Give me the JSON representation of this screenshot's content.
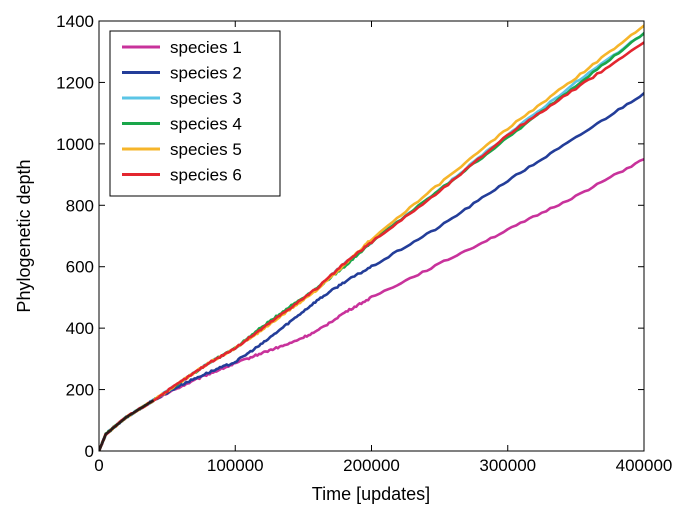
{
  "chart_data": {
    "type": "line",
    "title": "",
    "xlabel": "Time [updates]",
    "ylabel": "Phylogenetic depth",
    "xlim": [
      0,
      400000
    ],
    "ylim": [
      0,
      1400
    ],
    "xticks": [
      0,
      100000,
      200000,
      300000,
      400000
    ],
    "xtick_labels": [
      "0",
      "100000",
      "200000",
      "300000",
      "400000"
    ],
    "yticks": [
      0,
      200,
      400,
      600,
      800,
      1000,
      1200,
      1400
    ],
    "ytick_labels": [
      "0",
      "200",
      "400",
      "600",
      "800",
      "1000",
      "1200",
      "1400"
    ],
    "grid": false,
    "legend_position": "top-left",
    "series": [
      {
        "name": "species 1",
        "color": "#c8329b",
        "x": [
          0,
          5000,
          20000,
          40000,
          60000,
          80000,
          100000,
          120000,
          140000,
          160000,
          180000,
          200000,
          250000,
          300000,
          350000,
          400000
        ],
        "y": [
          0,
          55,
          110,
          165,
          210,
          250,
          285,
          320,
          350,
          390,
          450,
          500,
          610,
          720,
          830,
          950
        ]
      },
      {
        "name": "species 2",
        "color": "#233d99",
        "x": [
          0,
          5000,
          20000,
          40000,
          60000,
          80000,
          100000,
          120000,
          140000,
          160000,
          180000,
          200000,
          250000,
          300000,
          350000,
          400000
        ],
        "y": [
          0,
          55,
          110,
          165,
          215,
          255,
          290,
          350,
          420,
          490,
          550,
          600,
          730,
          880,
          1020,
          1165
        ]
      },
      {
        "name": "species 3",
        "color": "#5bc5e6",
        "x": [
          0,
          5000,
          20000,
          40000,
          60000,
          80000,
          100000,
          120000,
          140000,
          160000,
          180000,
          200000,
          250000,
          300000,
          350000,
          400000
        ],
        "y": [
          0,
          55,
          110,
          165,
          225,
          285,
          335,
          400,
          465,
          530,
          610,
          680,
          850,
          1030,
          1200,
          1360
        ]
      },
      {
        "name": "species 4",
        "color": "#1aa64a",
        "x": [
          0,
          5000,
          20000,
          40000,
          60000,
          80000,
          100000,
          120000,
          140000,
          160000,
          180000,
          200000,
          250000,
          300000,
          350000,
          400000
        ],
        "y": [
          0,
          55,
          110,
          165,
          225,
          285,
          335,
          405,
          470,
          530,
          600,
          680,
          850,
          1020,
          1190,
          1360
        ]
      },
      {
        "name": "species 5",
        "color": "#f6b52a",
        "x": [
          0,
          5000,
          20000,
          40000,
          60000,
          80000,
          100000,
          120000,
          140000,
          160000,
          180000,
          200000,
          250000,
          300000,
          350000,
          400000
        ],
        "y": [
          0,
          55,
          110,
          165,
          225,
          285,
          335,
          395,
          460,
          525,
          605,
          690,
          870,
          1050,
          1215,
          1385
        ]
      },
      {
        "name": "species 6",
        "color": "#e3262f",
        "x": [
          0,
          5000,
          20000,
          40000,
          60000,
          80000,
          100000,
          120000,
          140000,
          160000,
          180000,
          200000,
          250000,
          300000,
          350000,
          400000
        ],
        "y": [
          0,
          55,
          110,
          165,
          225,
          285,
          335,
          400,
          465,
          530,
          610,
          680,
          845,
          1030,
          1180,
          1330
        ]
      }
    ]
  }
}
